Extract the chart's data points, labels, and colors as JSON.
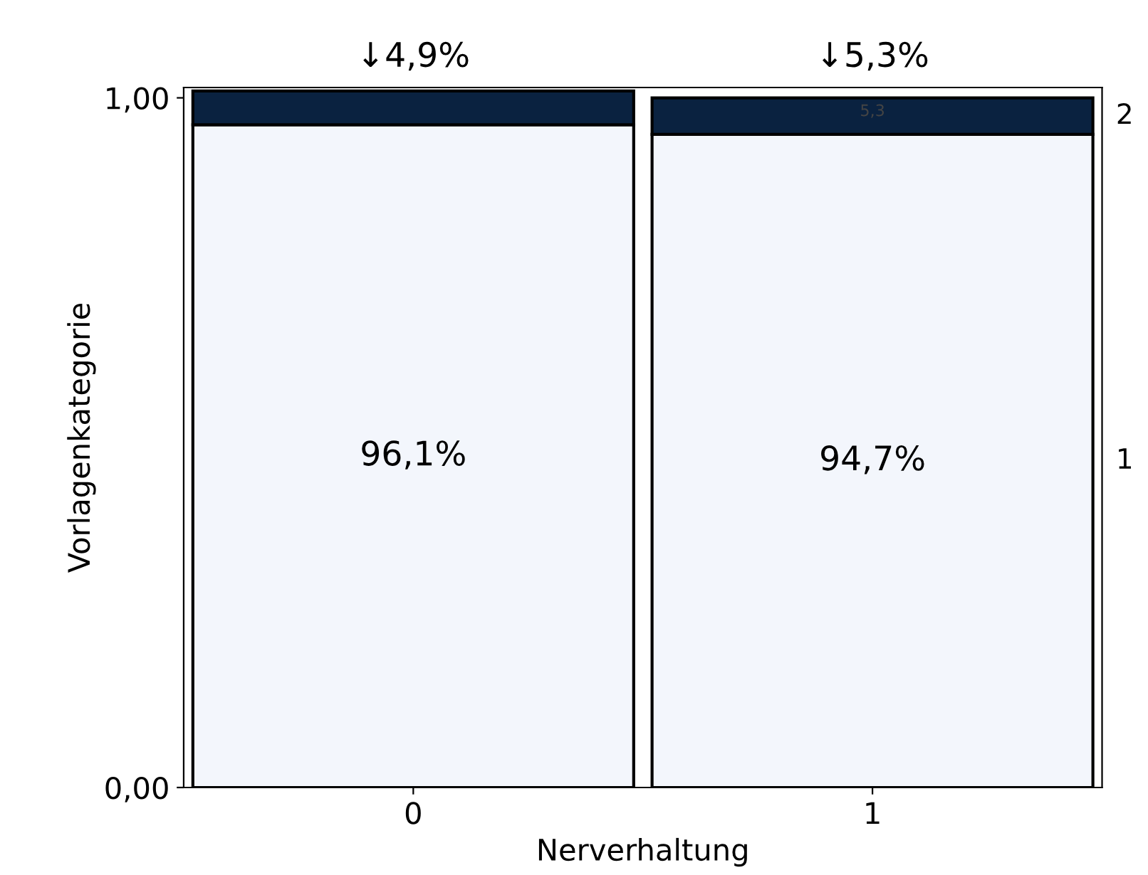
{
  "chart_data": {
    "type": "bar",
    "stacked": true,
    "xlabel": "Nerverhaltung",
    "ylabel": "Vorlagenkategorie",
    "categories": [
      "0",
      "1"
    ],
    "series": [
      {
        "name": "1",
        "color": "#f3f6fc",
        "values": [
          0.961,
          0.947
        ],
        "value_labels": [
          "96,1%",
          "94,7%"
        ]
      },
      {
        "name": "2",
        "color": "#0a2240",
        "values": [
          0.049,
          0.053
        ],
        "value_labels": [
          "↓4,9%",
          "↓5,3%"
        ]
      }
    ],
    "annotations": [
      "5,3"
    ],
    "ylim": [
      0,
      1.015
    ],
    "yticks": [
      {
        "value": 0,
        "label": "0,00"
      },
      {
        "value": 1,
        "label": "1,00"
      }
    ],
    "grid": false,
    "legend": false
  }
}
